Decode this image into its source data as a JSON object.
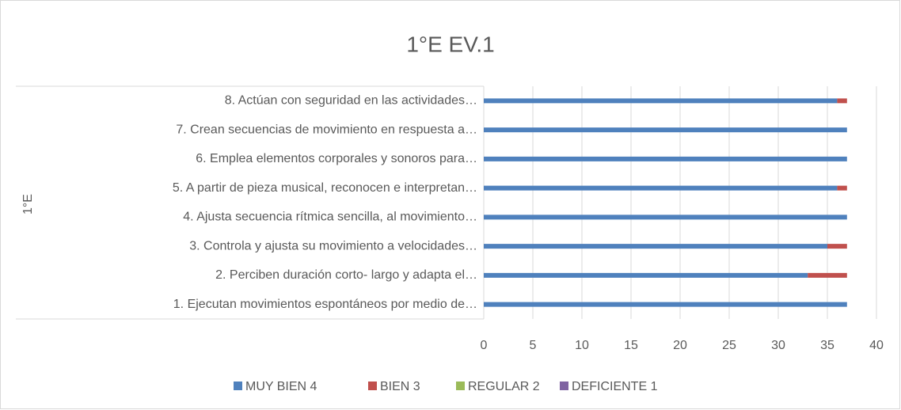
{
  "chart_data": {
    "type": "stacked_barh",
    "title": "1°E EV.1",
    "group_label": "1°E",
    "categories": [
      "1. Ejecutan movimientos espontáneos por medio de…",
      "2. Perciben duración corto- largo y adapta el…",
      "3. Controla y ajusta su movimiento a velocidades…",
      "4. Ajusta secuencia rítmica sencilla, al movimiento…",
      "5. A partir de pieza musical, reconocen e interpretan…",
      "6. Emplea elementos corporales y sonoros para…",
      "7. Crean secuencias de movimiento en respuesta a…",
      "8. Actúan con seguridad en las actividades…"
    ],
    "series": [
      {
        "name": "MUY BIEN 4",
        "color": "#4f81bd",
        "values": [
          37,
          33,
          35,
          37,
          36,
          37,
          37,
          36
        ]
      },
      {
        "name": "BIEN 3",
        "color": "#c0504d",
        "values": [
          0,
          4,
          2,
          0,
          1,
          0,
          0,
          1
        ]
      },
      {
        "name": "REGULAR 2",
        "color": "#9bbb59",
        "values": [
          0,
          0,
          0,
          0,
          0,
          0,
          0,
          0
        ]
      },
      {
        "name": "DEFICIENTE 1",
        "color": "#8064a2",
        "values": [
          0,
          0,
          0,
          0,
          0,
          0,
          0,
          0
        ]
      }
    ],
    "xlim": [
      0,
      40
    ],
    "xticks": [
      0,
      5,
      10,
      15,
      20,
      25,
      30,
      35,
      40
    ],
    "grid": true,
    "legend": "bottom"
  }
}
